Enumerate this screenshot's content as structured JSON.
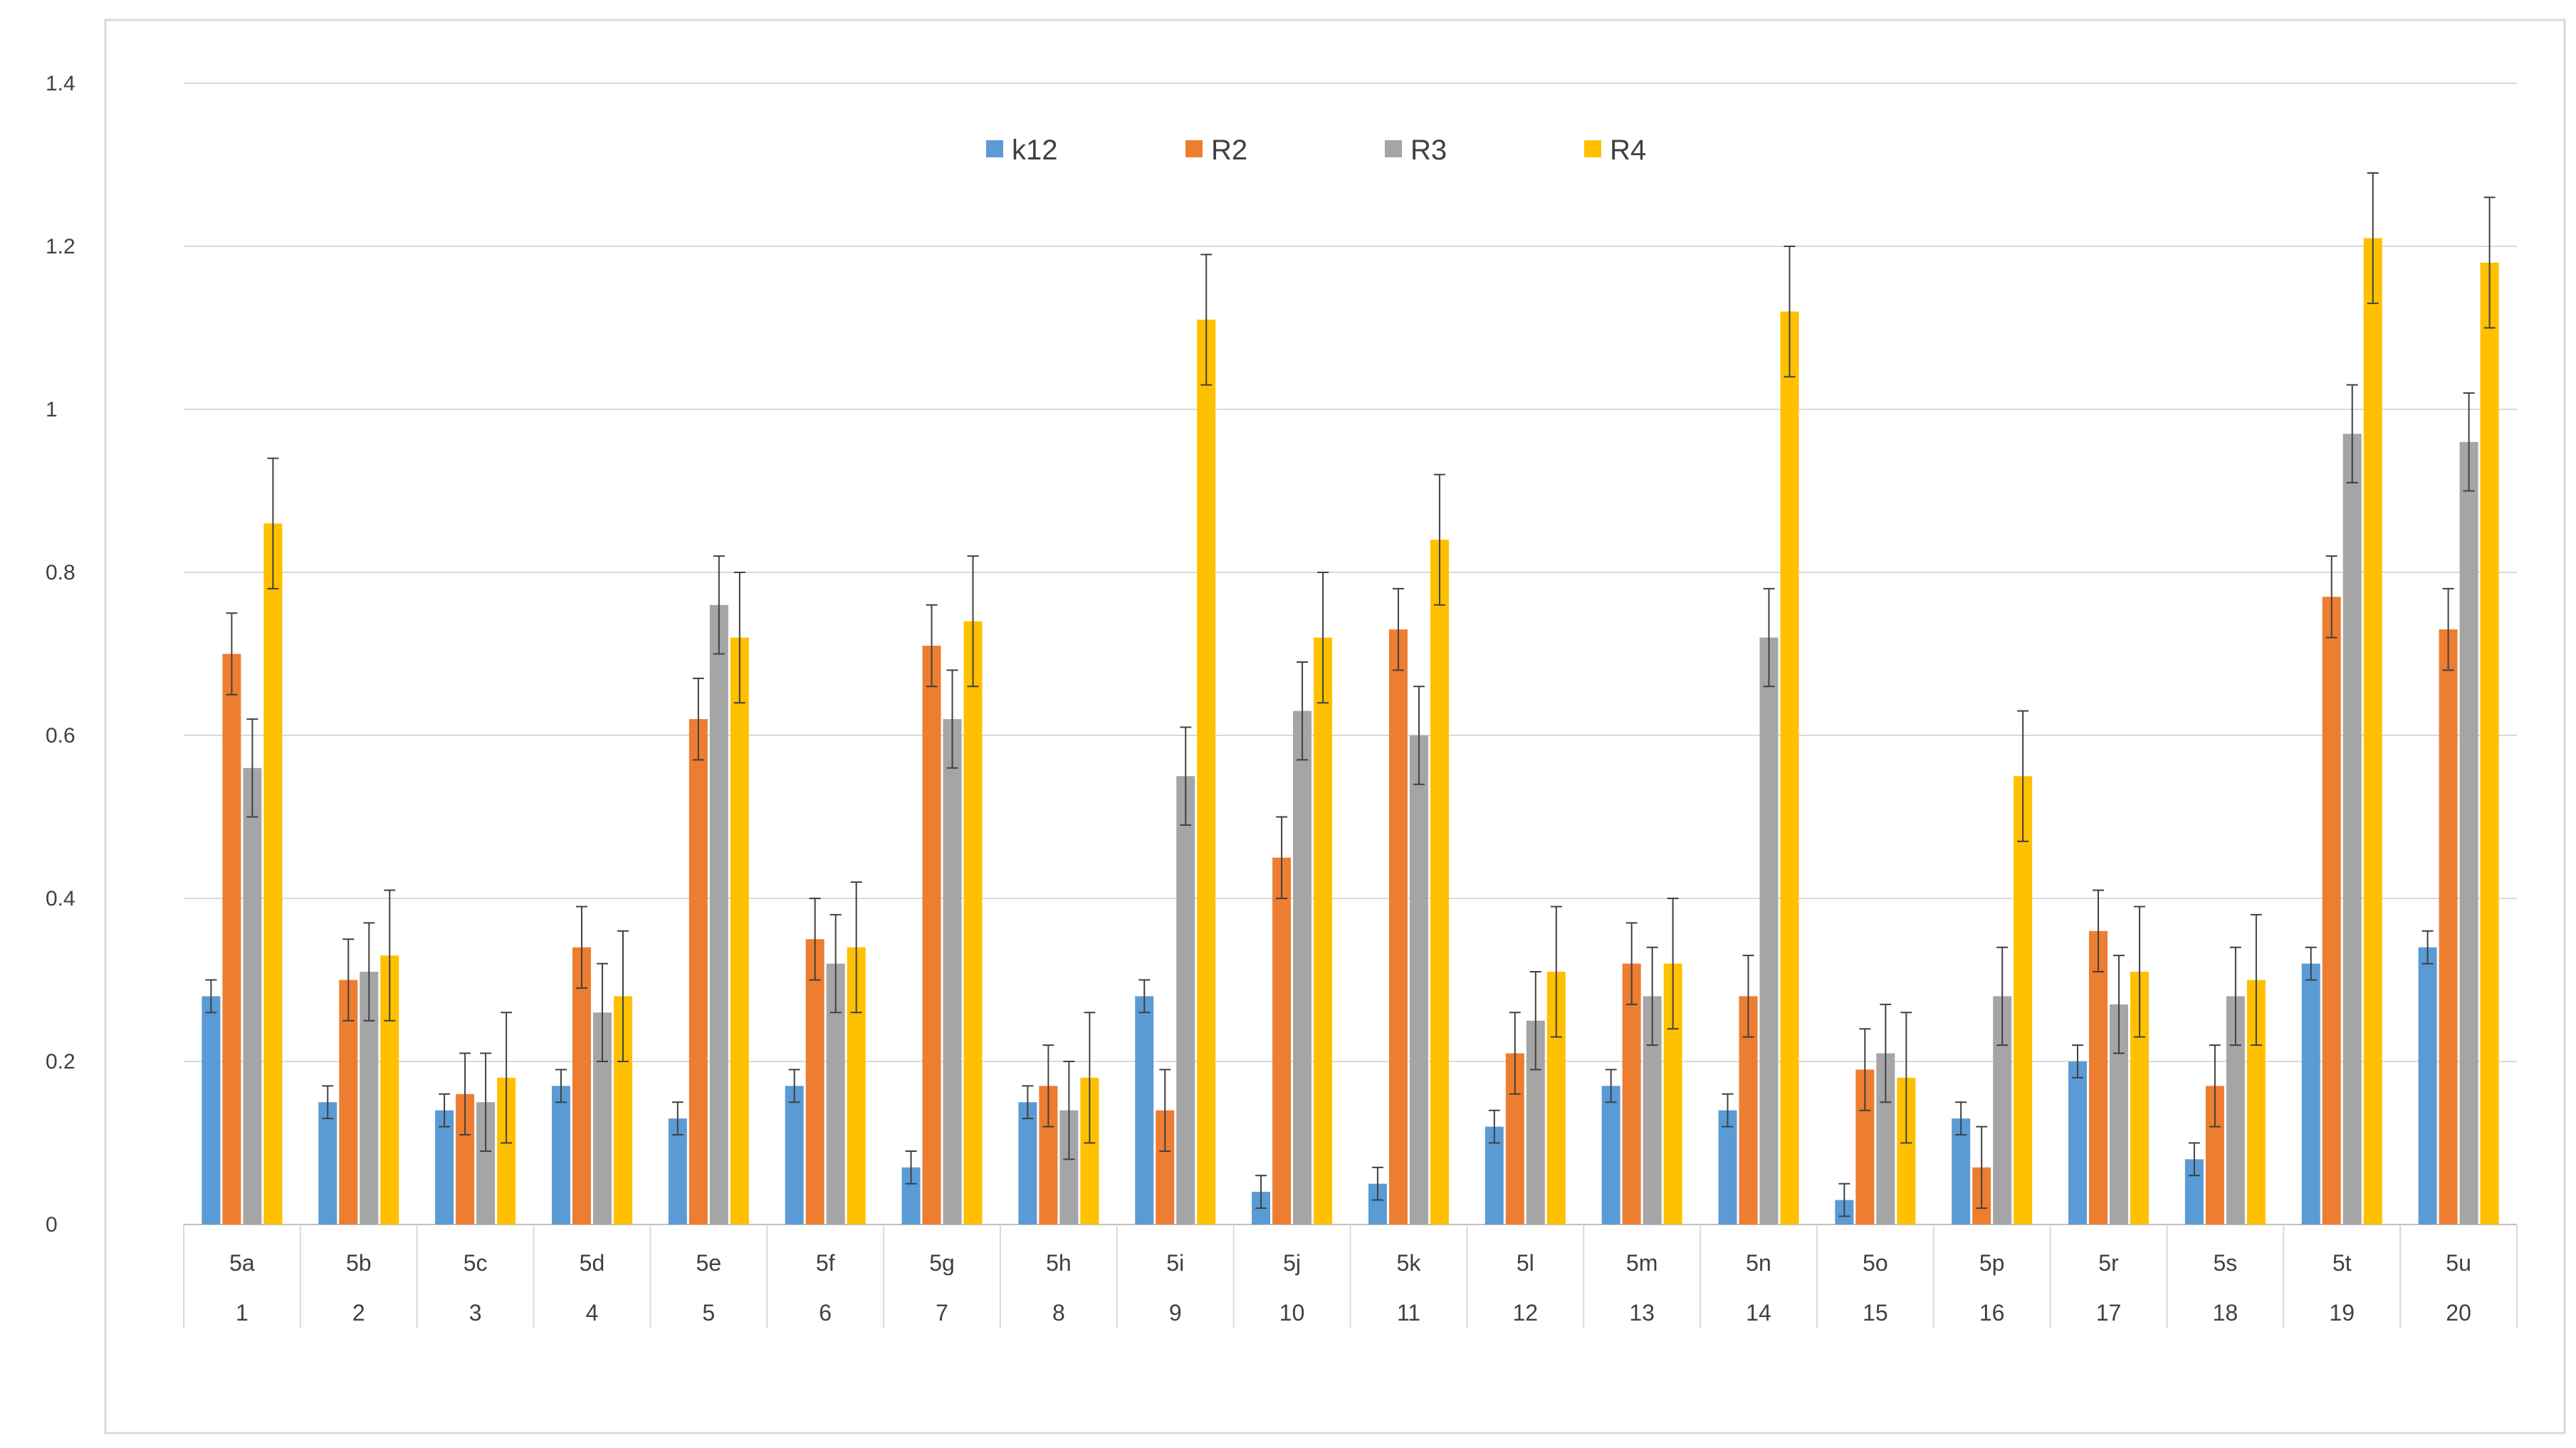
{
  "chart_data": {
    "type": "bar",
    "title": "",
    "xlabel": "",
    "ylabel": "",
    "ylim": [
      0,
      1.4
    ],
    "yticks": [
      "0",
      "0.2",
      "0.4",
      "0.6",
      "0.8",
      "1",
      "1.2",
      "1.4"
    ],
    "grid": true,
    "legend_position": "top-center",
    "categories": [
      "5a",
      "5b",
      "5c",
      "5d",
      "5e",
      "5f",
      "5g",
      "5h",
      "5i",
      "5j",
      "5k",
      "5l",
      "5m",
      "5n",
      "5o",
      "5p",
      "5r",
      "5s",
      "5t",
      "5u"
    ],
    "category_numbers": [
      "1",
      "2",
      "3",
      "4",
      "5",
      "6",
      "7",
      "8",
      "9",
      "10",
      "11",
      "12",
      "13",
      "14",
      "15",
      "16",
      "17",
      "18",
      "19",
      "20"
    ],
    "series": [
      {
        "name": "k12",
        "color": "#5b9bd5",
        "values": [
          0.28,
          0.15,
          0.14,
          0.17,
          0.13,
          0.17,
          0.07,
          0.15,
          0.28,
          0.04,
          0.05,
          0.12,
          0.17,
          0.14,
          0.03,
          0.13,
          0.2,
          0.08,
          0.32,
          0.34
        ],
        "errors": [
          0.02,
          0.02,
          0.02,
          0.02,
          0.02,
          0.02,
          0.02,
          0.02,
          0.02,
          0.02,
          0.02,
          0.02,
          0.02,
          0.02,
          0.02,
          0.02,
          0.02,
          0.02,
          0.02,
          0.02
        ]
      },
      {
        "name": "R2",
        "color": "#ed7d31",
        "values": [
          0.7,
          0.3,
          0.16,
          0.34,
          0.62,
          0.35,
          0.71,
          0.17,
          0.14,
          0.45,
          0.73,
          0.21,
          0.32,
          0.28,
          0.19,
          0.07,
          0.36,
          0.17,
          0.77,
          0.73
        ],
        "errors": [
          0.05,
          0.05,
          0.05,
          0.05,
          0.05,
          0.05,
          0.05,
          0.05,
          0.05,
          0.05,
          0.05,
          0.05,
          0.05,
          0.05,
          0.05,
          0.05,
          0.05,
          0.05,
          0.05,
          0.05
        ]
      },
      {
        "name": "R3",
        "color": "#a5a5a5",
        "values": [
          0.56,
          0.31,
          0.15,
          0.26,
          0.76,
          0.32,
          0.62,
          0.14,
          0.55,
          0.63,
          0.6,
          0.25,
          0.28,
          0.72,
          0.21,
          0.28,
          0.27,
          0.28,
          0.97,
          0.96
        ],
        "errors": [
          0.06,
          0.06,
          0.06,
          0.06,
          0.06,
          0.06,
          0.06,
          0.06,
          0.06,
          0.06,
          0.06,
          0.06,
          0.06,
          0.06,
          0.06,
          0.06,
          0.06,
          0.06,
          0.06,
          0.06
        ]
      },
      {
        "name": "R4",
        "color": "#ffc000",
        "values": [
          0.86,
          0.33,
          0.18,
          0.28,
          0.72,
          0.34,
          0.74,
          0.18,
          1.11,
          0.72,
          0.84,
          0.31,
          0.32,
          1.12,
          0.18,
          0.55,
          0.31,
          0.3,
          1.21,
          1.18
        ],
        "errors": [
          0.08,
          0.08,
          0.08,
          0.08,
          0.08,
          0.08,
          0.08,
          0.08,
          0.08,
          0.08,
          0.08,
          0.08,
          0.08,
          0.08,
          0.08,
          0.08,
          0.08,
          0.08,
          0.08,
          0.08
        ]
      }
    ]
  }
}
